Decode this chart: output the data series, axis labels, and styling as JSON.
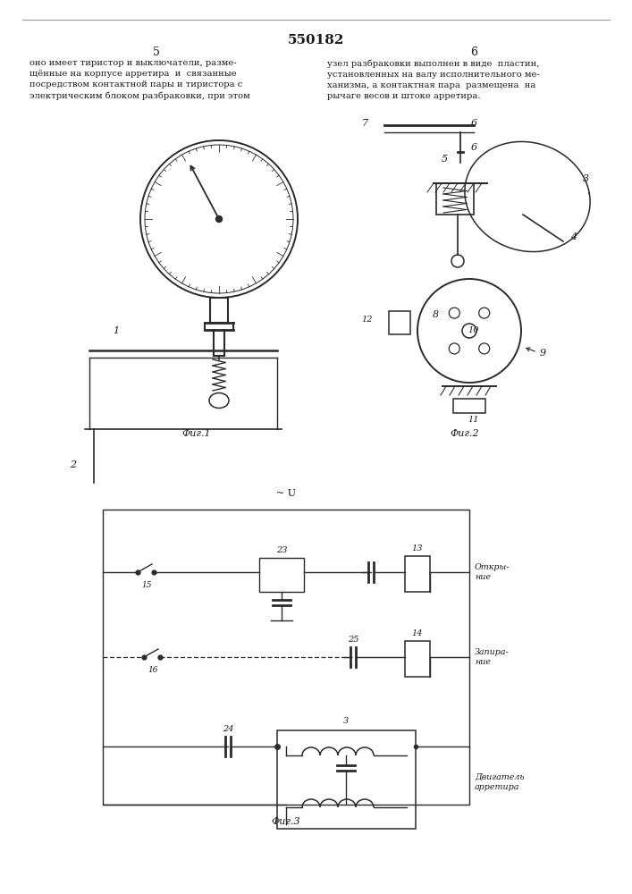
{
  "title": "550182",
  "page_left": "5",
  "page_right": "6",
  "text_left": "оно имеет тиристор и выключатели, разме-\nщённые на корпусе арретира  и  связанные\nпосредством контактной пары и тиристора с\nэлектрическим блоком разбраковки, при этом",
  "text_right": "узел разбраковки выполнен в виде  пластин,\nустановленных на валу исполнительного ме-\nханизма, а контактная пара  размещена  на\nрычаге весов и штоке арретира.",
  "fig1_label": "Фиг.1",
  "fig2_label": "Фиг.2",
  "fig3_label": "Фиг.3",
  "circuit_label": "~ U",
  "open_label": "Откры-\nние",
  "close_label": "Запира-\nние",
  "motor_label": "Двигатель\nарретира",
  "bg_color": "#ffffff",
  "line_color": "#2a2a2a",
  "text_color": "#1a1a1a"
}
